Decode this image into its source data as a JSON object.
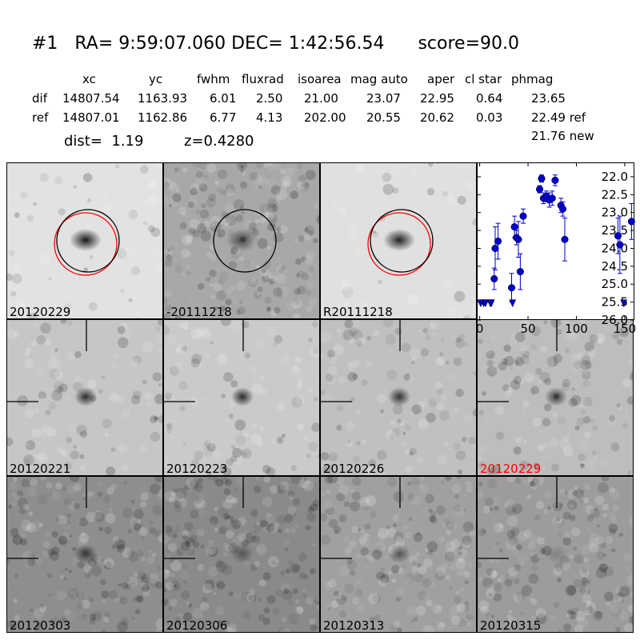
{
  "header": {
    "title": "#1   RA= 9:59:07.060 DEC= 1:42:56.54      score=90.0",
    "columns": [
      "xc",
      "yc",
      "fwhm",
      "fluxrad",
      "isoarea",
      "mag auto",
      "aper",
      "cl star",
      "phmag"
    ],
    "rows": [
      {
        "label": "dif",
        "values": [
          "14807.54",
          "1163.93",
          "6.01",
          "2.50",
          "21.00",
          "23.07",
          "22.95",
          "0.64",
          "23.65"
        ]
      },
      {
        "label": "ref",
        "values": [
          "14807.01",
          "1162.86",
          "6.77",
          "4.13",
          "202.00",
          "20.55",
          "20.62",
          "0.03",
          "22.49 ref"
        ]
      }
    ],
    "extra_phmag": "21.76 new",
    "dist": "dist=  1.19",
    "z": "z=0.4280"
  },
  "panels": [
    {
      "label": "20120229",
      "tone": "#e2e2e2",
      "blob": 0.9,
      "noise": 0.2,
      "circles": true,
      "red_circle": true,
      "cross": false,
      "label_color": "#000000"
    },
    {
      "label": "-20111218",
      "tone": "#a8a8a8",
      "blob": 0.6,
      "noise": 0.9,
      "circles": true,
      "red_circle": false,
      "cross": false,
      "label_color": "#000000"
    },
    {
      "label": "R20111218",
      "tone": "#e0e0e0",
      "blob": 0.85,
      "noise": 0.2,
      "circles": true,
      "red_circle": true,
      "cross": false,
      "label_color": "#000000"
    },
    {
      "label": "20120221",
      "tone": "#c6c6c6",
      "blob": 0.8,
      "noise": 0.4,
      "circles": false,
      "red_circle": false,
      "cross": true,
      "label_color": "#000000"
    },
    {
      "label": "20120223",
      "tone": "#cacaca",
      "blob": 0.8,
      "noise": 0.4,
      "circles": false,
      "red_circle": false,
      "cross": true,
      "label_color": "#000000"
    },
    {
      "label": "20120226",
      "tone": "#c0c0c0",
      "blob": 0.75,
      "noise": 0.5,
      "circles": false,
      "red_circle": false,
      "cross": true,
      "label_color": "#000000"
    },
    {
      "label": "20120229",
      "tone": "#bdbdbd",
      "blob": 0.7,
      "noise": 0.6,
      "circles": false,
      "red_circle": false,
      "cross": true,
      "label_color": "#ff0000"
    },
    {
      "label": "20120303",
      "tone": "#8e8e8e",
      "blob": 0.6,
      "noise": 0.8,
      "circles": false,
      "red_circle": false,
      "cross": true,
      "label_color": "#000000"
    },
    {
      "label": "20120306",
      "tone": "#8a8a8a",
      "blob": 0.4,
      "noise": 0.9,
      "circles": false,
      "red_circle": false,
      "cross": true,
      "label_color": "#000000"
    },
    {
      "label": "20120313",
      "tone": "#a0a0a0",
      "blob": 0.5,
      "noise": 0.8,
      "circles": false,
      "red_circle": false,
      "cross": true,
      "label_color": "#000000"
    },
    {
      "label": "20120315",
      "tone": "#9c9c9c",
      "blob": 0.2,
      "noise": 0.9,
      "circles": false,
      "red_circle": false,
      "cross": true,
      "label_color": "#000000"
    }
  ],
  "chart_data": {
    "type": "scatter",
    "title": "",
    "xlabel": "",
    "ylabel": "",
    "xlim": [
      -3,
      160
    ],
    "ylim": [
      26.0,
      21.6
    ],
    "xticks": [
      0,
      50,
      100,
      150
    ],
    "yticks": [
      22.0,
      22.5,
      23.0,
      23.5,
      24.0,
      24.5,
      25.0,
      25.5,
      26.0
    ],
    "ytick_labels": [
      "22.0",
      "22.5",
      "23.0",
      "23.5",
      "24.0",
      "24.5",
      "25.0",
      "25.5",
      "26.0"
    ],
    "color": "#0000cc",
    "points": [
      {
        "x": 1,
        "y": 25.5,
        "err": 0.0,
        "limit": true
      },
      {
        "x": 4,
        "y": 25.5,
        "err": 0.0,
        "limit": true
      },
      {
        "x": 6,
        "y": 25.5,
        "err": 0.0,
        "limit": true
      },
      {
        "x": 11,
        "y": 25.5,
        "err": 0.0,
        "limit": true
      },
      {
        "x": 12,
        "y": 25.5,
        "err": 0.0,
        "limit": true
      },
      {
        "x": 15,
        "y": 24.85,
        "err": 0.3
      },
      {
        "x": 16,
        "y": 24.0,
        "err": 0.6
      },
      {
        "x": 19,
        "y": 23.8,
        "err": 0.5
      },
      {
        "x": 33,
        "y": 25.1,
        "err": 0.4
      },
      {
        "x": 34,
        "y": 25.5,
        "err": 0.0,
        "limit": true
      },
      {
        "x": 36,
        "y": 23.4,
        "err": 0.3
      },
      {
        "x": 38,
        "y": 23.7,
        "err": 0.2
      },
      {
        "x": 40,
        "y": 23.75,
        "err": 0.5
      },
      {
        "x": 42,
        "y": 24.65,
        "err": 0.5
      },
      {
        "x": 45,
        "y": 23.1,
        "err": 0.2
      },
      {
        "x": 62,
        "y": 22.35,
        "err": 0.1
      },
      {
        "x": 64,
        "y": 22.05,
        "err": 0.1
      },
      {
        "x": 66,
        "y": 22.6,
        "err": 0.15
      },
      {
        "x": 69,
        "y": 22.55,
        "err": 0.15
      },
      {
        "x": 72,
        "y": 22.65,
        "err": 0.2
      },
      {
        "x": 75,
        "y": 22.6,
        "err": 0.2
      },
      {
        "x": 78,
        "y": 22.1,
        "err": 0.15
      },
      {
        "x": 84,
        "y": 22.8,
        "err": 0.2
      },
      {
        "x": 86,
        "y": 22.9,
        "err": 0.2
      },
      {
        "x": 88,
        "y": 23.75,
        "err": 0.6
      },
      {
        "x": 143,
        "y": 23.65,
        "err": 0.5
      },
      {
        "x": 145,
        "y": 23.9,
        "err": 0.8
      },
      {
        "x": 149,
        "y": 25.5,
        "err": 0.0,
        "limit": true
      },
      {
        "x": 157,
        "y": 23.25,
        "err": 0.5
      }
    ]
  }
}
